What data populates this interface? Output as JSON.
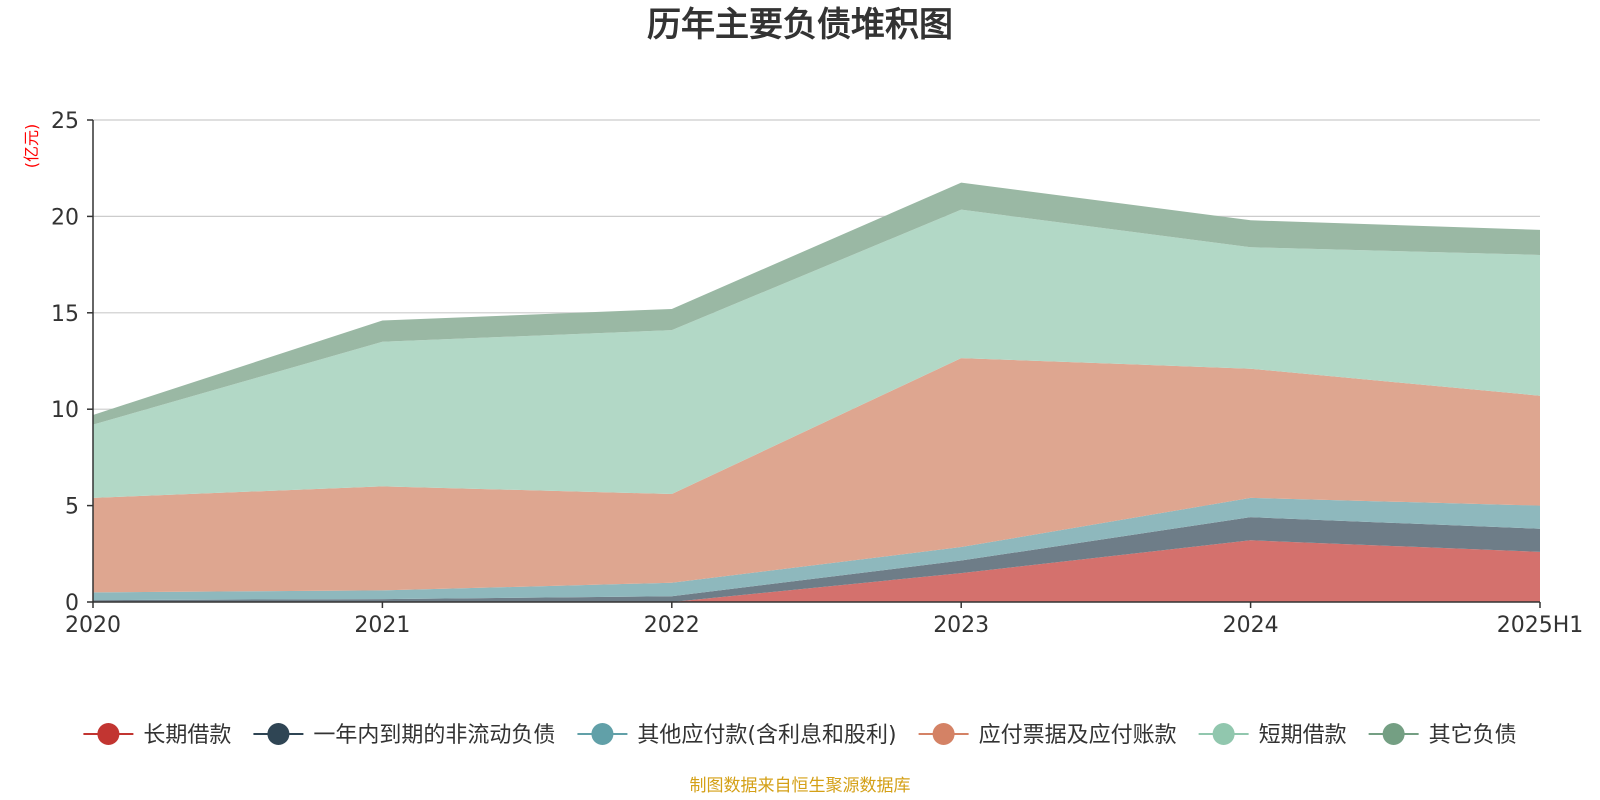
{
  "chart_data": {
    "type": "area",
    "stacked": true,
    "title": "历年主要负债堆积图",
    "unit_label": "(亿元)",
    "categories": [
      "2020",
      "2021",
      "2022",
      "2023",
      "2024",
      "2025H1"
    ],
    "ylim": [
      0,
      25
    ],
    "yticks": [
      "0",
      "5",
      "10",
      "15",
      "20",
      "25"
    ],
    "grid": true,
    "legend_position": "bottom",
    "series": [
      {
        "name": "长期借款",
        "color": "#c23531",
        "area_color": "#d4716d",
        "values": [
          0,
          0,
          0,
          1.5,
          3.2,
          2.6
        ]
      },
      {
        "name": "一年内到期的非流动负债",
        "color": "#2f4554",
        "area_color": "#6e7d88",
        "values": [
          0.1,
          0.15,
          0.3,
          0.65,
          1.2,
          1.2
        ]
      },
      {
        "name": "其他应付款(含利息和股利)",
        "color": "#61a0a8",
        "area_color": "#8eb8bd",
        "values": [
          0.4,
          0.45,
          0.7,
          0.7,
          1.0,
          1.2
        ]
      },
      {
        "name": "应付票据及应付账款",
        "color": "#d48265",
        "area_color": "#dea690",
        "values": [
          4.9,
          5.4,
          4.6,
          9.8,
          6.7,
          5.7
        ]
      },
      {
        "name": "短期借款",
        "color": "#91c7ae",
        "area_color": "#b2d8c6",
        "values": [
          3.8,
          7.5,
          8.5,
          7.7,
          6.3,
          7.3
        ]
      },
      {
        "name": "其它负债",
        "color": "#749f83",
        "area_color": "#9ab8a4",
        "values": [
          0.5,
          1.1,
          1.1,
          1.4,
          1.4,
          1.3
        ]
      }
    ],
    "source_note": "制图数据来自恒生聚源数据库",
    "colors": {
      "title": "#333333",
      "axis": "#333333",
      "grid": "#cccccc",
      "unit_label": "#ff0000",
      "source_note": "#d4a017"
    }
  }
}
